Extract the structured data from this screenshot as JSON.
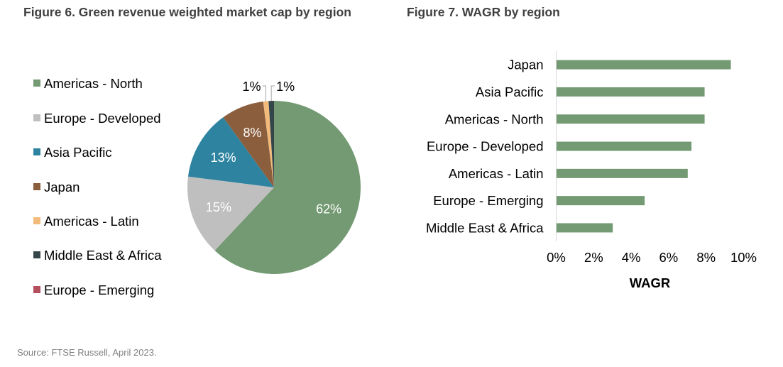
{
  "figures": {
    "fig6_title": "Figure 6. Green revenue weighted market cap by region",
    "fig7_title": "Figure 7. WAGR by region"
  },
  "source": "Source: FTSE Russell, April 2023.",
  "chart_data": [
    {
      "type": "pie",
      "title": "Figure 6. Green revenue weighted market cap by region",
      "legend_placement": "left",
      "slices": [
        {
          "label": "Americas - North",
          "value": 62,
          "display": "62%",
          "color": "#739a72"
        },
        {
          "label": "Europe - Developed",
          "value": 15,
          "display": "15%",
          "color": "#bfbfbf"
        },
        {
          "label": "Asia Pacific",
          "value": 13,
          "display": "13%",
          "color": "#2e84a0"
        },
        {
          "label": "Japan",
          "value": 8,
          "display": "8%",
          "color": "#8b5f3e"
        },
        {
          "label": "Americas - Latin",
          "value": 1,
          "display": "1%",
          "color": "#f2bb7c"
        },
        {
          "label": "Middle East & Africa",
          "value": 1,
          "display": "1%",
          "color": "#35464b"
        },
        {
          "label": "Europe - Emerging",
          "value": 0,
          "display": "",
          "color": "#b44f5e"
        }
      ]
    },
    {
      "type": "bar",
      "orientation": "horizontal",
      "title": "Figure 7. WAGR by region",
      "xlabel": "WAGR",
      "categories": [
        "Japan",
        "Asia Pacific",
        "Americas - North",
        "Europe - Developed",
        "Americas - Latin",
        "Europe - Emerging",
        "Middle East & Africa"
      ],
      "values": [
        9.3,
        7.9,
        7.9,
        7.2,
        7.0,
        4.7,
        3.0
      ],
      "xlim": [
        0,
        10
      ],
      "xticks": [
        "0%",
        "2%",
        "4%",
        "6%",
        "8%",
        "10%"
      ],
      "grid": false,
      "bar_color": "#739a72"
    }
  ]
}
